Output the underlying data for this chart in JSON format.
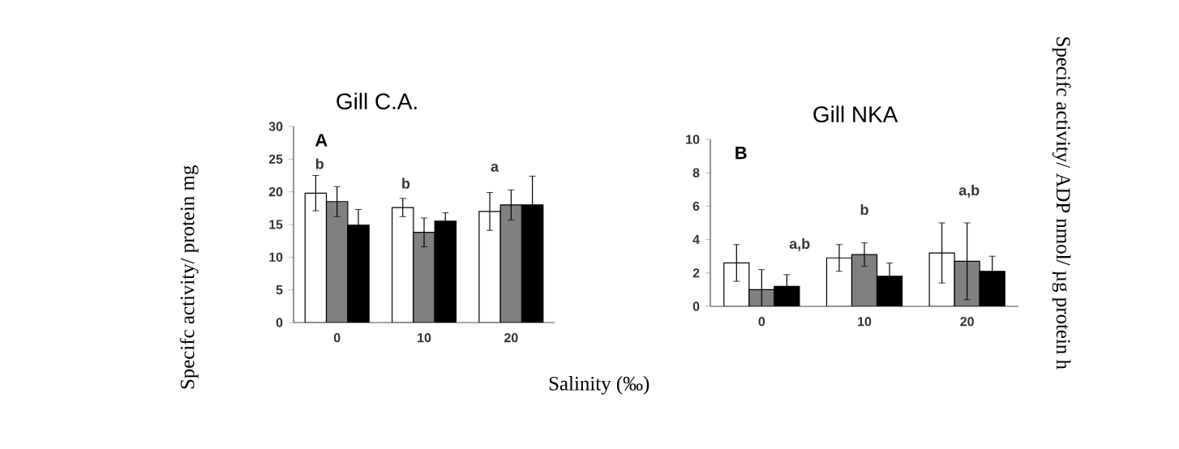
{
  "chart_data": [
    {
      "type": "bar",
      "title": "Gill C.A.",
      "xlabel": "Salinity (‰)",
      "ylabel": "Specifc activity/ protein mg",
      "categories": [
        "0",
        "10",
        "20"
      ],
      "ylim": [
        0,
        30
      ],
      "yticks": [
        0,
        5,
        10,
        15,
        20,
        25,
        30
      ],
      "series": [
        {
          "color": "#ffffff",
          "values": [
            19.8,
            17.6,
            17.0
          ],
          "errors": [
            2.7,
            1.4,
            2.9
          ]
        },
        {
          "color": "#808080",
          "values": [
            18.5,
            13.8,
            18.0
          ],
          "errors": [
            2.3,
            2.2,
            2.3
          ]
        },
        {
          "color": "#000000",
          "values": [
            14.9,
            15.5,
            18.0
          ],
          "errors": [
            2.4,
            1.3,
            4.4
          ]
        }
      ],
      "annotations": [
        "A",
        "b",
        "b",
        "a"
      ]
    },
    {
      "type": "bar",
      "title": "Gill NKA",
      "ylabel": "Specifc activity/ ADP nmol/ µg protein h",
      "categories": [
        "0",
        "10",
        "20"
      ],
      "ylim": [
        0,
        10
      ],
      "yticks": [
        0,
        2,
        4,
        6,
        8,
        10
      ],
      "series": [
        {
          "color": "#ffffff",
          "values": [
            2.6,
            2.9,
            3.2
          ],
          "errors": [
            1.1,
            0.8,
            1.8
          ]
        },
        {
          "color": "#808080",
          "values": [
            1.0,
            3.1,
            2.7
          ],
          "errors": [
            1.2,
            0.7,
            2.3
          ]
        },
        {
          "color": "#000000",
          "values": [
            1.2,
            1.8,
            2.1
          ],
          "errors": [
            0.7,
            0.8,
            0.9
          ]
        }
      ],
      "annotations": [
        "B",
        "a,b",
        "b",
        "a,b"
      ]
    }
  ]
}
